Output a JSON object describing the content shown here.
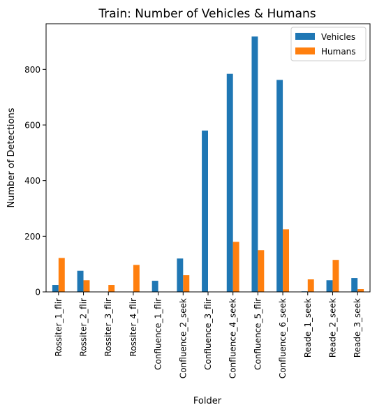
{
  "chart_data": {
    "type": "bar",
    "title": "Train: Number of Vehicles & Humans",
    "xlabel": "Folder",
    "ylabel": "Number of Detections",
    "categories": [
      "Rossiter_1_flir",
      "Rossiter_2_flir",
      "Rossiter_3_flir",
      "Rossiter_4_flir",
      "Confluence_1_flir",
      "Confluence_2_seek",
      "Confluence_3_flir",
      "Confluence_4_seek",
      "Confluence_5_flir",
      "Confluence_6_seek",
      "Reade_1_seek",
      "Reade_2_seek",
      "Reade_3_seek"
    ],
    "series": [
      {
        "name": "Vehicles",
        "color": "#1f77b4",
        "values": [
          25,
          76,
          0,
          0,
          40,
          120,
          580,
          784,
          918,
          762,
          2,
          42,
          50
        ]
      },
      {
        "name": "Humans",
        "color": "#ff7f0e",
        "values": [
          122,
          42,
          25,
          97,
          0,
          60,
          0,
          180,
          150,
          225,
          45,
          115,
          10
        ]
      }
    ],
    "ylim": [
      0,
      964
    ],
    "yticks": [
      0,
      200,
      400,
      600,
      800
    ],
    "grid": false,
    "legend_position": "top-right"
  }
}
